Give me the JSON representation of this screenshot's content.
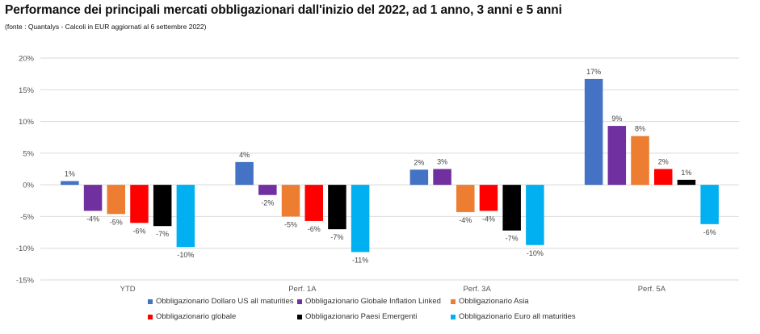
{
  "title": "Performance dei principali mercati obbligazionari dall'inizio del 2022, ad 1 anno, 3 anni e 5 anni",
  "subtitle": "(fonte : Quantalys - Calcoli in EUR aggiornati al 6 settembre 2022)",
  "chart_data": {
    "type": "bar",
    "categories": [
      "YTD",
      "Perf. 1A",
      "Perf. 3A",
      "Perf. 5A"
    ],
    "ylim": [
      -15,
      20
    ],
    "yticks": [
      "20%",
      "15%",
      "10%",
      "5%",
      "0%",
      "-5%",
      "-10%",
      "-15%"
    ],
    "grid": true,
    "legend_position": "bottom",
    "series": [
      {
        "name": "Obbligazionario Dollaro US all maturities",
        "color": "#4472C4",
        "values": [
          0.6,
          3.6,
          2.4,
          16.7
        ],
        "labels": [
          "1%",
          "4%",
          "2%",
          "17%"
        ]
      },
      {
        "name": "Obbligazionario Globale Inflation Linked",
        "color": "#7030A0",
        "values": [
          -4.1,
          -1.6,
          2.5,
          9.3
        ],
        "labels": [
          "-4%",
          "-2%",
          "3%",
          "9%"
        ]
      },
      {
        "name": "Obbligazionario Asia",
        "color": "#ED7D31",
        "values": [
          -4.6,
          -5.0,
          -4.3,
          7.7
        ],
        "labels": [
          "-5%",
          "-5%",
          "-4%",
          "8%"
        ]
      },
      {
        "name": "Obbligazionario globale",
        "color": "#FF0000",
        "values": [
          -6.0,
          -5.7,
          -4.1,
          2.5
        ],
        "labels": [
          "-6%",
          "-6%",
          "-4%",
          "2%"
        ]
      },
      {
        "name": "Obbligazionario Paesi Emergenti",
        "color": "#000000",
        "values": [
          -6.5,
          -7.0,
          -7.2,
          0.8
        ],
        "labels": [
          "-7%",
          "-7%",
          "-7%",
          "1%"
        ]
      },
      {
        "name": "Obbligazionario Euro all maturities",
        "color": "#00B0F0",
        "values": [
          -9.8,
          -10.6,
          -9.5,
          -6.2
        ],
        "labels": [
          "-10%",
          "-11%",
          "-10%",
          "-6%"
        ]
      }
    ]
  }
}
